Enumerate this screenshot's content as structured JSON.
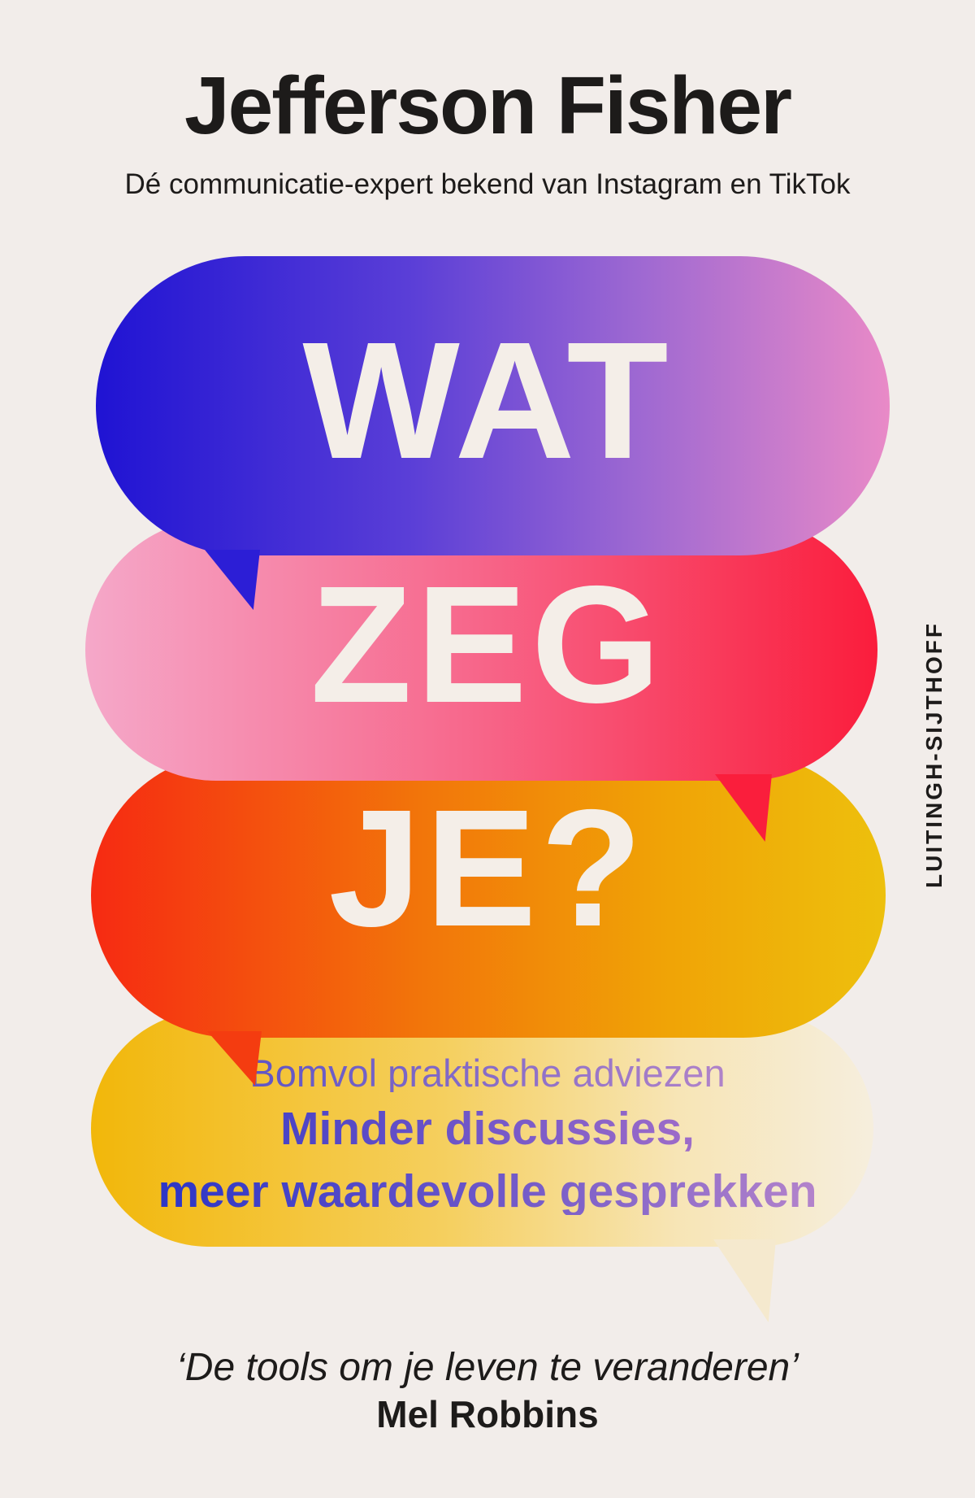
{
  "header": {
    "author": "Jefferson Fisher",
    "tagline": "Dé communicatie-expert bekend van Instagram en TikTok"
  },
  "bubbles": {
    "word1": "WAT",
    "word2": "ZEG",
    "word3": "JE?"
  },
  "blurb": {
    "line1": "Bomvol praktische adviezen",
    "line2": "Minder discussies,",
    "line3": "meer waardevolle gesprekken"
  },
  "publisher": "LUITINGH-SIJTHOFF",
  "footer": {
    "quote": "‘De tools om je leven te veranderen’",
    "attribution": "Mel Robbins"
  },
  "colors": {
    "--bg": "#f2edea",
    "--ink": "#1d1b1a",
    "--word": "#f4eee8",
    "--b1-a": "#1f13d3",
    "--b1-b": "#5b3fd7",
    "--b1-c": "#9d68d2",
    "--b1-d": "#e98ac7",
    "--b1-tail": "#2c1ed6",
    "--b2-a": "#f5a8c9",
    "--b2-b": "#f7688c",
    "--b2-c": "#fa1d3c",
    "--b2-tail": "#fa1e3c",
    "--b3-a": "#f62a12",
    "--b3-b": "#f2760a",
    "--b3-c": "#f0a306",
    "--b3-d": "#edc00d",
    "--b3-tail": "#f43c10",
    "--b4-a": "#f2b70a",
    "--b4-b": "#f5cf5e",
    "--b4-c": "#f7e5b6",
    "--b4-d": "#f6eedd",
    "--b4-tail": "#f5e9ce",
    "--tx1-a": "#5f55c5",
    "--tx1-b": "#b083c9",
    "--tx2-a": "#4a43c6",
    "--tx2-b": "#9e6cc9",
    "--tx3-a": "#2c35c6",
    "--tx3-m": "#6d56c8",
    "--tx3-b": "#b383cb"
  }
}
